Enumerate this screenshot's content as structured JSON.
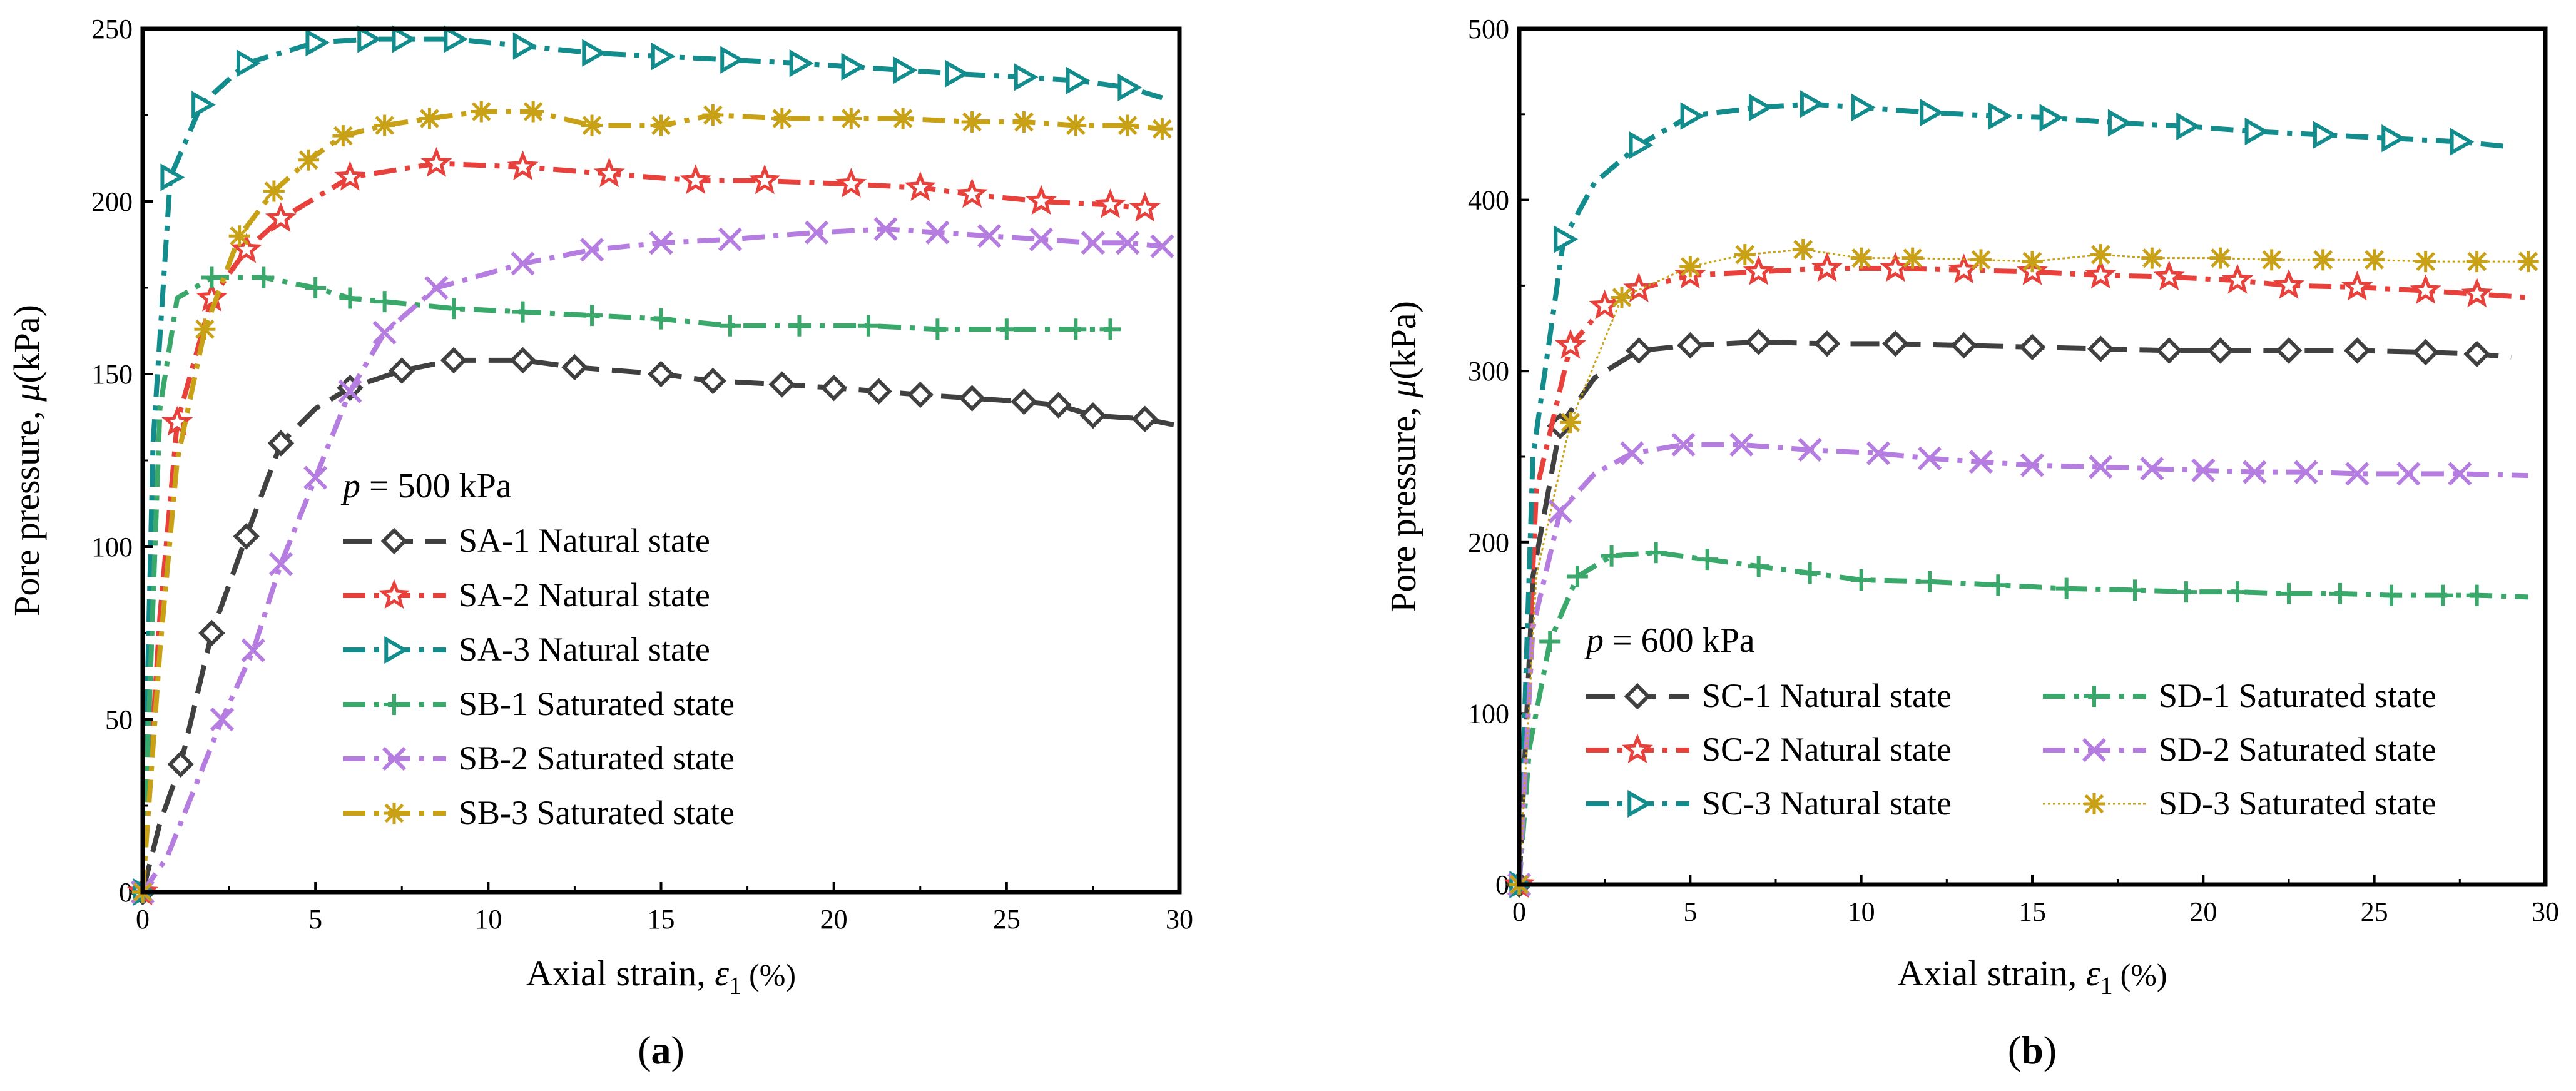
{
  "chart_data": [
    {
      "type": "line",
      "panel": "a",
      "caption": {
        "open": "(",
        "letter": "a",
        "close": ")"
      },
      "xlabel": {
        "text": "Axial strain, ",
        "symbol": "ε",
        "sub": "1",
        "unit": "(%)"
      },
      "ylabel": {
        "text": "Pore pressure, ",
        "symbol": "μ",
        "unit": "(kPa)"
      },
      "xlim": [
        0,
        30
      ],
      "ylim": [
        0,
        250
      ],
      "xticks": [
        "0",
        "5",
        "10",
        "15",
        "20",
        "25",
        "30"
      ],
      "yticks": [
        "0",
        "50",
        "100",
        "150",
        "200",
        "250"
      ],
      "annotation": {
        "var": "p",
        "text": " = 500 kPa"
      },
      "series": [
        {
          "name": "SA-1 Natural state",
          "color": "#404040",
          "marker": "diamond",
          "dash": "long",
          "x": [
            0,
            0.5,
            1.1,
            2,
            3,
            4,
            5,
            6,
            7.5,
            9,
            11,
            12.5,
            15,
            16.5,
            18.5,
            20,
            21.3,
            22.5,
            24,
            25.5,
            26.5,
            27.5,
            29,
            30
          ],
          "y": [
            0,
            20,
            37,
            75,
            103,
            130,
            140,
            146,
            151,
            154,
            154,
            152,
            150,
            148,
            147,
            146,
            145,
            144,
            143,
            142,
            141,
            138,
            137,
            135
          ],
          "markers": [
            0,
            2,
            3,
            4,
            5,
            7,
            8,
            9,
            10,
            11,
            12,
            13,
            14,
            15,
            16,
            17,
            18,
            19,
            20,
            21,
            22
          ]
        },
        {
          "name": "SA-2 Natural state",
          "color": "#e8413c",
          "marker": "star",
          "dash": "dashdot",
          "x": [
            0,
            0.5,
            1,
            2,
            3,
            4,
            6,
            8.5,
            11,
            13.5,
            16,
            18,
            20.5,
            22.5,
            24,
            26,
            28,
            29
          ],
          "y": [
            0,
            80,
            136,
            172,
            186,
            195,
            207,
            211,
            210,
            208,
            206,
            206,
            205,
            204,
            202,
            200,
            199,
            198
          ],
          "markers": [
            0,
            2,
            3,
            4,
            5,
            6,
            7,
            8,
            9,
            10,
            11,
            12,
            13,
            14,
            15,
            16,
            17
          ]
        },
        {
          "name": "SA-3 Natural state",
          "color": "#128c8c",
          "marker": "triangle",
          "dash": "dashdot",
          "x": [
            0,
            0.3,
            0.8,
            1.7,
            3,
            5,
            6.5,
            7.5,
            9,
            11,
            13,
            15,
            17,
            19,
            20.5,
            22,
            23.5,
            25.5,
            27,
            28.5,
            29.5
          ],
          "y": [
            0,
            130,
            207,
            228,
            240,
            246,
            247,
            247,
            247,
            245,
            243,
            242,
            241,
            240,
            239,
            238,
            237,
            236,
            235,
            233,
            230
          ],
          "markers": [
            0,
            2,
            3,
            4,
            5,
            6,
            7,
            8,
            9,
            10,
            11,
            12,
            13,
            14,
            15,
            16,
            17,
            18,
            19
          ]
        },
        {
          "name": "SB-1 Saturated state",
          "color": "#3aa86b",
          "marker": "plus",
          "dash": "dashdot",
          "x": [
            0,
            0.5,
            1,
            2,
            3.5,
            5,
            6,
            7,
            9,
            11,
            13,
            15,
            17,
            19,
            21,
            23,
            25,
            27,
            28
          ],
          "y": [
            0,
            140,
            172,
            178,
            178,
            175,
            172,
            171,
            169,
            168,
            167,
            166,
            164,
            164,
            164,
            163,
            163,
            163,
            163
          ],
          "markers": [
            0,
            3,
            4,
            5,
            6,
            7,
            8,
            9,
            10,
            11,
            12,
            13,
            14,
            15,
            16,
            17,
            18
          ]
        },
        {
          "name": "SB-2 Saturated state",
          "color": "#b67de0",
          "marker": "cross",
          "dash": "dashdot",
          "x": [
            0,
            0.7,
            1.5,
            2.3,
            3.2,
            4,
            5,
            6,
            7,
            8.5,
            11,
            13,
            15,
            17,
            19.5,
            21.5,
            23,
            24.5,
            26,
            27.5,
            28.5,
            29.5
          ],
          "y": [
            0,
            10,
            30,
            50,
            70,
            95,
            120,
            145,
            162,
            175,
            182,
            186,
            188,
            189,
            191,
            192,
            191,
            190,
            189,
            188,
            188,
            187
          ],
          "markers": [
            0,
            3,
            4,
            5,
            6,
            7,
            8,
            9,
            10,
            11,
            12,
            13,
            14,
            15,
            16,
            17,
            18,
            19,
            20,
            21
          ]
        },
        {
          "name": "SB-3 Saturated state",
          "color": "#c9a116",
          "marker": "asterisk",
          "dash": "dashdot",
          "x": [
            0,
            0.5,
            1,
            1.8,
            2.8,
            3.8,
            4.8,
            5.8,
            7,
            8.3,
            9.8,
            11.3,
            13,
            15,
            16.5,
            18.5,
            20.5,
            22,
            24,
            25.5,
            27,
            28.5,
            29.5
          ],
          "y": [
            0,
            70,
            125,
            163,
            190,
            203,
            212,
            219,
            222,
            224,
            226,
            226,
            222,
            222,
            225,
            224,
            224,
            224,
            223,
            223,
            222,
            222,
            221
          ],
          "markers": [
            0,
            3,
            4,
            5,
            6,
            7,
            8,
            9,
            10,
            11,
            12,
            13,
            14,
            15,
            16,
            17,
            18,
            19,
            20,
            21,
            22
          ]
        }
      ]
    },
    {
      "type": "line",
      "panel": "b",
      "caption": {
        "open": "(",
        "letter": "b",
        "close": ")"
      },
      "xlabel": {
        "text": "Axial strain, ",
        "symbol": "ε",
        "sub": "1",
        "unit": "(%)"
      },
      "ylabel": {
        "text": "Pore pressure, ",
        "symbol": "μ",
        "unit": "(kPa)"
      },
      "xlim": [
        0,
        30
      ],
      "ylim": [
        0,
        500
      ],
      "xticks": [
        "0",
        "5",
        "10",
        "15",
        "20",
        "25",
        "30"
      ],
      "yticks": [
        "0",
        "100",
        "200",
        "300",
        "400",
        "500"
      ],
      "annotation": {
        "var": "p",
        "text": " = 600 kPa"
      },
      "series": [
        {
          "name": "SC-1 Natural state",
          "color": "#404040",
          "marker": "diamond",
          "dash": "long",
          "x": [
            0,
            0.4,
            1.2,
            2.2,
            3.5,
            5,
            7,
            9,
            11,
            13,
            15,
            17,
            19,
            20.5,
            22.5,
            24.5,
            26.5,
            28,
            29
          ],
          "y": [
            0,
            180,
            268,
            296,
            312,
            315,
            317,
            316,
            316,
            315,
            314,
            313,
            312,
            312,
            312,
            312,
            311,
            310,
            308
          ],
          "markers": [
            0,
            2,
            4,
            5,
            6,
            7,
            8,
            9,
            10,
            11,
            12,
            13,
            14,
            15,
            16,
            17
          ]
        },
        {
          "name": "SC-2 Natural state",
          "color": "#e8413c",
          "marker": "star",
          "dash": "dashdot",
          "x": [
            0,
            0.5,
            1.5,
            2.5,
            3.5,
            5,
            7,
            9,
            11,
            13,
            15,
            17,
            19,
            21,
            22.5,
            24.5,
            26.5,
            28,
            29.5
          ],
          "y": [
            0,
            230,
            315,
            338,
            348,
            356,
            358,
            360,
            360,
            359,
            358,
            356,
            355,
            353,
            350,
            349,
            347,
            345,
            343
          ],
          "markers": [
            0,
            2,
            3,
            4,
            5,
            6,
            7,
            8,
            9,
            10,
            11,
            12,
            13,
            14,
            15,
            16,
            17
          ]
        },
        {
          "name": "SC-3 Natural state",
          "color": "#128c8c",
          "marker": "triangle",
          "dash": "dashdot",
          "x": [
            0,
            0.4,
            1.3,
            2.2,
            3.5,
            5,
            7,
            8.5,
            10,
            12,
            14,
            15.5,
            17.5,
            19.5,
            21.5,
            23.5,
            25.5,
            27.5,
            29
          ],
          "y": [
            0,
            250,
            377,
            410,
            432,
            449,
            454,
            456,
            454,
            451,
            449,
            448,
            445,
            443,
            440,
            438,
            436,
            434,
            431
          ],
          "markers": [
            0,
            2,
            4,
            5,
            6,
            7,
            8,
            9,
            10,
            11,
            12,
            13,
            14,
            15,
            16,
            17
          ]
        },
        {
          "name": "SD-1 Saturated state",
          "color": "#3aa86b",
          "marker": "plus",
          "dash": "dashdot",
          "x": [
            0,
            0.3,
            0.9,
            1.7,
            2.7,
            4,
            5.5,
            7,
            8.5,
            10,
            12,
            14,
            16,
            18,
            19.5,
            21,
            22.5,
            24,
            25.5,
            27,
            28,
            29.5
          ],
          "y": [
            0,
            80,
            142,
            180,
            192,
            194,
            190,
            186,
            182,
            178,
            177,
            175,
            173,
            172,
            171,
            171,
            170,
            170,
            169,
            169,
            169,
            168
          ],
          "markers": [
            0,
            2,
            3,
            4,
            5,
            6,
            7,
            8,
            9,
            10,
            11,
            12,
            13,
            14,
            15,
            16,
            17,
            18,
            19,
            20
          ]
        },
        {
          "name": "SD-2 Saturated state",
          "color": "#b67de0",
          "marker": "cross",
          "dash": "dashdot",
          "x": [
            0,
            0.4,
            1.2,
            2.2,
            3.3,
            4.8,
            6.5,
            8.5,
            10.5,
            12,
            13.5,
            15,
            17,
            18.5,
            20,
            21.5,
            23,
            24.5,
            26,
            27.5,
            29.5
          ],
          "y": [
            0,
            150,
            218,
            240,
            252,
            257,
            257,
            254,
            252,
            249,
            247,
            245,
            244,
            243,
            242,
            241,
            241,
            240,
            240,
            240,
            239
          ],
          "markers": [
            0,
            2,
            4,
            5,
            6,
            7,
            8,
            9,
            10,
            11,
            12,
            13,
            14,
            15,
            16,
            17,
            18,
            19
          ]
        },
        {
          "name": "SD-3 Saturated state",
          "color": "#c9a116",
          "marker": "asterisk",
          "dash": "thin",
          "x": [
            0,
            0.5,
            1.5,
            3,
            5,
            6.6,
            8.3,
            10,
            11.5,
            13.5,
            15,
            17,
            18.5,
            20.5,
            22,
            23.5,
            25,
            26.5,
            28,
            29.5
          ],
          "y": [
            0,
            180,
            270,
            343,
            361,
            368,
            371,
            366,
            366,
            365,
            364,
            368,
            366,
            366,
            365,
            365,
            365,
            364,
            364,
            364
          ],
          "markers": [
            0,
            2,
            3,
            4,
            5,
            6,
            7,
            8,
            9,
            10,
            11,
            12,
            13,
            14,
            15,
            16,
            17,
            18,
            19
          ]
        }
      ]
    }
  ]
}
